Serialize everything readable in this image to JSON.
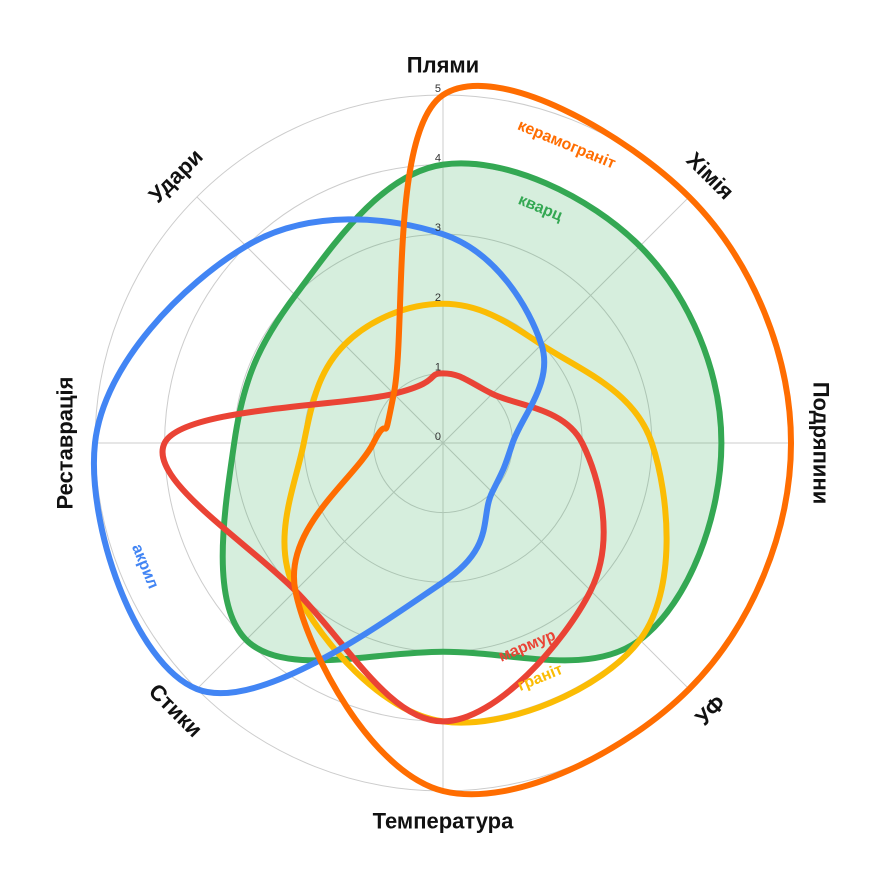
{
  "chart_data": {
    "type": "radar",
    "title": "",
    "axes": [
      "Плями",
      "Хімія",
      "Подряпини",
      "УФ",
      "Температура",
      "Стики",
      "Реставрація",
      "Удари"
    ],
    "rlim": [
      0,
      5
    ],
    "ticks": [
      "0",
      "1",
      "2",
      "3",
      "4",
      "5"
    ],
    "grid": true,
    "series": [
      {
        "name": "кварц",
        "color": "#34a853",
        "values": [
          4,
          4,
          4,
          4,
          3,
          4,
          3,
          3
        ],
        "filled": true
      },
      {
        "name": "граніт",
        "color": "#fbbc04",
        "values": [
          2,
          2,
          3,
          4,
          4,
          3,
          2,
          2
        ],
        "filled": false
      },
      {
        "name": "мармур",
        "color": "#ea4335",
        "values": [
          1,
          1,
          2,
          3,
          4,
          3,
          4,
          1
        ],
        "filled": false
      },
      {
        "name": "акрил",
        "color": "#4285f4",
        "values": [
          3,
          2,
          1,
          1,
          2,
          5,
          5,
          4
        ],
        "filled": false
      },
      {
        "name": "керамограніт",
        "color": "#ff6d01",
        "values": [
          5,
          5,
          5,
          5,
          5,
          3,
          1,
          1
        ],
        "filled": false
      }
    ]
  }
}
